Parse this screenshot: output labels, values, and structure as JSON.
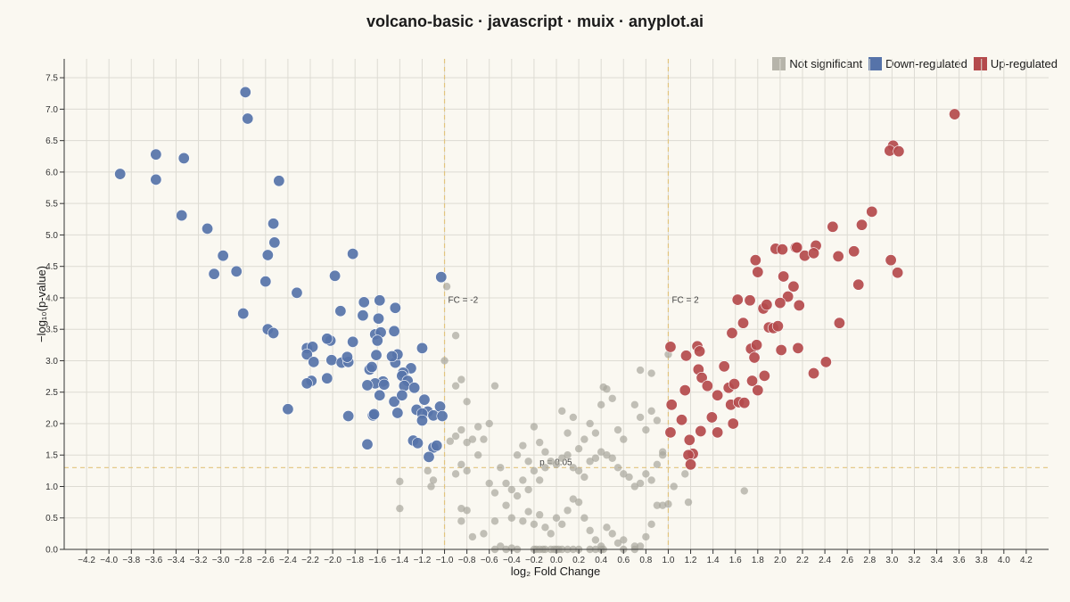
{
  "chart_data": {
    "type": "scatter",
    "title": "volcano-basic · javascript · muix · anyplot.ai",
    "xlabel": "log₂ Fold Change",
    "ylabel": "−log₁₀(p-value)",
    "xlim": [
      -4.4,
      4.4
    ],
    "ylim": [
      0,
      7.8
    ],
    "x_ticks": [
      -4.2,
      -4.0,
      -3.8,
      -3.6,
      -3.4,
      -3.2,
      -3.0,
      -2.8,
      -2.6,
      -2.4,
      -2.2,
      -2.0,
      -1.8,
      -1.6,
      -1.4,
      -1.2,
      -1.0,
      -0.8,
      -0.6,
      -0.4,
      -0.2,
      0.0,
      0.2,
      0.4,
      0.6,
      0.8,
      1.0,
      1.2,
      1.4,
      1.6,
      1.8,
      2.0,
      2.2,
      2.4,
      2.6,
      2.8,
      3.0,
      3.2,
      3.4,
      3.6,
      3.8,
      4.0,
      4.2
    ],
    "y_ticks": [
      0.0,
      0.5,
      1.0,
      1.5,
      2.0,
      2.5,
      3.0,
      3.5,
      4.0,
      4.5,
      5.0,
      5.5,
      6.0,
      6.5,
      7.0,
      7.5
    ],
    "grid": true,
    "legend_position": "top-right",
    "reference_lines": [
      {
        "axis": "x",
        "value": -1.0,
        "label": "FC = -2"
      },
      {
        "axis": "x",
        "value": 1.0,
        "label": "FC = 2"
      },
      {
        "axis": "y",
        "value": 1.3,
        "label": "p = 0.05"
      }
    ],
    "series": [
      {
        "name": "Not significant",
        "color": "#A8A69C",
        "points": [
          [
            -0.98,
            4.18
          ],
          [
            -0.9,
            3.4
          ],
          [
            -1.0,
            3.0
          ],
          [
            -0.9,
            2.6
          ],
          [
            -0.85,
            2.7
          ],
          [
            -0.55,
            2.6
          ],
          [
            -0.8,
            2.35
          ],
          [
            -0.6,
            2.0
          ],
          [
            -0.7,
            1.95
          ],
          [
            -0.75,
            1.75
          ],
          [
            -0.8,
            1.7
          ],
          [
            -0.85,
            1.9
          ],
          [
            -0.9,
            1.8
          ],
          [
            -0.95,
            1.72
          ],
          [
            -0.65,
            1.75
          ],
          [
            -0.7,
            1.5
          ],
          [
            -0.85,
            1.35
          ],
          [
            -0.8,
            1.25
          ],
          [
            -0.9,
            1.2
          ],
          [
            -1.15,
            1.25
          ],
          [
            -1.1,
            1.1
          ],
          [
            -1.12,
            1.0
          ],
          [
            -1.4,
            1.08
          ],
          [
            -1.4,
            0.65
          ],
          [
            -0.85,
            0.65
          ],
          [
            -0.8,
            0.62
          ],
          [
            -0.85,
            0.45
          ],
          [
            -0.75,
            0.2
          ],
          [
            -0.65,
            0.25
          ],
          [
            -0.55,
            0.45
          ],
          [
            -0.45,
            0.7
          ],
          [
            -0.4,
            0.5
          ],
          [
            -0.3,
            0.45
          ],
          [
            -0.25,
            0.6
          ],
          [
            -0.2,
            0.4
          ],
          [
            -0.15,
            0.55
          ],
          [
            -0.1,
            0.35
          ],
          [
            -0.05,
            0.25
          ],
          [
            0.0,
            0.5
          ],
          [
            0.05,
            0.4
          ],
          [
            0.1,
            0.62
          ],
          [
            0.15,
            0.8
          ],
          [
            0.2,
            0.75
          ],
          [
            0.25,
            0.5
          ],
          [
            0.3,
            0.3
          ],
          [
            0.35,
            0.15
          ],
          [
            0.4,
            0.05
          ],
          [
            0.45,
            0.35
          ],
          [
            0.5,
            0.25
          ],
          [
            0.55,
            0.1
          ],
          [
            0.6,
            0.15
          ],
          [
            0.7,
            0.05
          ],
          [
            0.75,
            0.05
          ],
          [
            0.8,
            0.2
          ],
          [
            0.85,
            0.4
          ],
          [
            0.9,
            0.7
          ],
          [
            0.95,
            0.7
          ],
          [
            1.0,
            0.72
          ],
          [
            -0.55,
            0.0
          ],
          [
            -0.5,
            0.05
          ],
          [
            -0.45,
            0.0
          ],
          [
            -0.4,
            0.02
          ],
          [
            -0.35,
            0.0
          ],
          [
            -0.2,
            0.0
          ],
          [
            -0.18,
            0.0
          ],
          [
            -0.15,
            0.0
          ],
          [
            -0.12,
            0.0
          ],
          [
            -0.1,
            0.0
          ],
          [
            -0.05,
            0.0
          ],
          [
            -0.02,
            0.0
          ],
          [
            0.0,
            0.0
          ],
          [
            0.02,
            0.0
          ],
          [
            0.05,
            0.0
          ],
          [
            0.1,
            0.0
          ],
          [
            0.15,
            0.0
          ],
          [
            0.2,
            0.0
          ],
          [
            0.3,
            0.0
          ],
          [
            0.35,
            0.0
          ],
          [
            0.4,
            0.0
          ],
          [
            0.42,
            0.0
          ],
          [
            0.6,
            0.0
          ],
          [
            0.7,
            0.0
          ],
          [
            -0.6,
            1.05
          ],
          [
            -0.55,
            0.9
          ],
          [
            -0.5,
            1.3
          ],
          [
            -0.45,
            1.05
          ],
          [
            -0.4,
            0.95
          ],
          [
            -0.35,
            0.85
          ],
          [
            -0.3,
            1.1
          ],
          [
            -0.25,
            0.95
          ],
          [
            -0.2,
            1.25
          ],
          [
            -0.15,
            1.1
          ],
          [
            -0.1,
            1.3
          ],
          [
            -0.05,
            1.4
          ],
          [
            0.0,
            1.35
          ],
          [
            0.05,
            1.45
          ],
          [
            0.1,
            1.5
          ],
          [
            0.15,
            1.3
          ],
          [
            0.2,
            1.25
          ],
          [
            0.25,
            1.15
          ],
          [
            0.3,
            1.4
          ],
          [
            0.35,
            1.45
          ],
          [
            0.4,
            1.55
          ],
          [
            0.45,
            1.5
          ],
          [
            0.5,
            1.45
          ],
          [
            0.55,
            1.3
          ],
          [
            0.6,
            1.2
          ],
          [
            0.65,
            1.15
          ],
          [
            0.7,
            1.0
          ],
          [
            0.75,
            1.05
          ],
          [
            0.8,
            1.2
          ],
          [
            0.85,
            1.1
          ],
          [
            0.9,
            1.35
          ],
          [
            0.95,
            1.5
          ],
          [
            -0.35,
            1.5
          ],
          [
            -0.3,
            1.65
          ],
          [
            -0.25,
            1.4
          ],
          [
            -0.2,
            1.95
          ],
          [
            -0.15,
            1.7
          ],
          [
            -0.1,
            1.55
          ],
          [
            0.05,
            2.2
          ],
          [
            0.1,
            1.85
          ],
          [
            0.15,
            2.1
          ],
          [
            0.2,
            1.6
          ],
          [
            0.25,
            1.75
          ],
          [
            0.3,
            2.0
          ],
          [
            0.35,
            1.85
          ],
          [
            0.4,
            2.3
          ],
          [
            0.45,
            2.55
          ],
          [
            0.5,
            2.4
          ],
          [
            0.55,
            1.9
          ],
          [
            0.6,
            1.75
          ],
          [
            0.7,
            2.3
          ],
          [
            0.75,
            2.1
          ],
          [
            0.8,
            1.9
          ],
          [
            0.85,
            2.2
          ],
          [
            0.9,
            2.05
          ],
          [
            0.95,
            1.55
          ],
          [
            0.75,
            2.85
          ],
          [
            0.85,
            2.8
          ],
          [
            0.42,
            2.58
          ],
          [
            1.0,
            3.1
          ],
          [
            1.15,
            1.2
          ],
          [
            1.05,
            1.0
          ],
          [
            1.18,
            0.75
          ],
          [
            1.68,
            0.93
          ]
        ]
      },
      {
        "name": "Down-regulated",
        "color": "#5673A9",
        "points": [
          [
            -2.78,
            7.27
          ],
          [
            -2.76,
            6.85
          ],
          [
            -3.58,
            6.28
          ],
          [
            -3.33,
            6.22
          ],
          [
            -3.9,
            5.97
          ],
          [
            -3.58,
            5.88
          ],
          [
            -2.48,
            5.86
          ],
          [
            -3.35,
            5.31
          ],
          [
            -3.12,
            5.1
          ],
          [
            -2.53,
            5.18
          ],
          [
            -2.52,
            4.88
          ],
          [
            -2.98,
            4.67
          ],
          [
            -2.58,
            4.68
          ],
          [
            -1.82,
            4.7
          ],
          [
            -2.86,
            4.42
          ],
          [
            -3.06,
            4.38
          ],
          [
            -2.6,
            4.26
          ],
          [
            -1.98,
            4.35
          ],
          [
            -1.03,
            4.33
          ],
          [
            -2.32,
            4.08
          ],
          [
            -2.8,
            3.75
          ],
          [
            -1.72,
            3.93
          ],
          [
            -1.58,
            3.96
          ],
          [
            -1.44,
            3.84
          ],
          [
            -1.93,
            3.79
          ],
          [
            -1.73,
            3.72
          ],
          [
            -1.59,
            3.67
          ],
          [
            -2.58,
            3.5
          ],
          [
            -2.53,
            3.44
          ],
          [
            -1.62,
            3.42
          ],
          [
            -1.57,
            3.45
          ],
          [
            -1.45,
            3.47
          ],
          [
            -1.6,
            3.32
          ],
          [
            -2.02,
            3.32
          ],
          [
            -2.05,
            3.35
          ],
          [
            -2.23,
            3.2
          ],
          [
            -2.18,
            3.22
          ],
          [
            -2.23,
            3.1
          ],
          [
            -1.82,
            3.3
          ],
          [
            -1.2,
            3.2
          ],
          [
            -2.17,
            2.98
          ],
          [
            -2.01,
            3.01
          ],
          [
            -1.92,
            2.97
          ],
          [
            -1.86,
            2.98
          ],
          [
            -1.87,
            3.06
          ],
          [
            -1.61,
            3.09
          ],
          [
            -1.44,
            2.97
          ],
          [
            -1.42,
            3.1
          ],
          [
            -1.47,
            3.07
          ],
          [
            -1.3,
            2.88
          ],
          [
            -1.67,
            2.86
          ],
          [
            -1.65,
            2.9
          ],
          [
            -1.55,
            2.67
          ],
          [
            -1.37,
            2.81
          ],
          [
            -1.38,
            2.76
          ],
          [
            -1.33,
            2.68
          ],
          [
            -1.36,
            2.6
          ],
          [
            -1.27,
            2.57
          ],
          [
            -2.05,
            2.72
          ],
          [
            -2.19,
            2.68
          ],
          [
            -2.23,
            2.64
          ],
          [
            -1.62,
            2.64
          ],
          [
            -1.54,
            2.62
          ],
          [
            -1.69,
            2.61
          ],
          [
            -1.58,
            2.45
          ],
          [
            -1.45,
            2.35
          ],
          [
            -1.38,
            2.45
          ],
          [
            -1.18,
            2.38
          ],
          [
            -1.25,
            2.22
          ],
          [
            -1.15,
            2.19
          ],
          [
            -1.2,
            2.16
          ],
          [
            -1.1,
            2.13
          ],
          [
            -1.04,
            2.27
          ],
          [
            -1.02,
            2.12
          ],
          [
            -1.2,
            2.05
          ],
          [
            -1.42,
            2.17
          ],
          [
            -1.64,
            2.13
          ],
          [
            -1.63,
            2.15
          ],
          [
            -1.86,
            2.12
          ],
          [
            -2.4,
            2.23
          ],
          [
            -1.1,
            1.62
          ],
          [
            -1.07,
            1.65
          ],
          [
            -1.14,
            1.47
          ],
          [
            -1.28,
            1.73
          ],
          [
            -1.24,
            1.69
          ],
          [
            -1.69,
            1.67
          ]
        ]
      },
      {
        "name": "Up-regulated",
        "color": "#B44A4C",
        "points": [
          [
            3.56,
            6.92
          ],
          [
            3.01,
            6.42
          ],
          [
            2.98,
            6.34
          ],
          [
            3.06,
            6.33
          ],
          [
            2.82,
            5.37
          ],
          [
            2.47,
            5.13
          ],
          [
            2.73,
            5.16
          ],
          [
            2.14,
            4.8
          ],
          [
            2.32,
            4.83
          ],
          [
            1.96,
            4.78
          ],
          [
            2.02,
            4.77
          ],
          [
            2.15,
            4.8
          ],
          [
            2.22,
            4.67
          ],
          [
            2.3,
            4.71
          ],
          [
            2.52,
            4.66
          ],
          [
            2.66,
            4.74
          ],
          [
            1.78,
            4.6
          ],
          [
            2.99,
            4.6
          ],
          [
            1.8,
            4.41
          ],
          [
            2.03,
            4.34
          ],
          [
            3.05,
            4.4
          ],
          [
            2.12,
            4.18
          ],
          [
            2.7,
            4.21
          ],
          [
            1.62,
            3.97
          ],
          [
            1.73,
            3.96
          ],
          [
            2.07,
            4.02
          ],
          [
            1.85,
            3.83
          ],
          [
            1.88,
            3.89
          ],
          [
            2.0,
            3.92
          ],
          [
            2.17,
            3.88
          ],
          [
            1.67,
            3.6
          ],
          [
            1.9,
            3.53
          ],
          [
            1.94,
            3.52
          ],
          [
            1.98,
            3.55
          ],
          [
            2.53,
            3.6
          ],
          [
            1.57,
            3.44
          ],
          [
            1.02,
            3.22
          ],
          [
            1.26,
            3.23
          ],
          [
            1.28,
            3.15
          ],
          [
            1.74,
            3.19
          ],
          [
            1.79,
            3.25
          ],
          [
            2.01,
            3.17
          ],
          [
            2.16,
            3.2
          ],
          [
            1.16,
            3.08
          ],
          [
            1.77,
            3.05
          ],
          [
            1.5,
            2.91
          ],
          [
            1.27,
            2.86
          ],
          [
            1.3,
            2.73
          ],
          [
            2.41,
            2.98
          ],
          [
            1.35,
            2.6
          ],
          [
            1.44,
            2.45
          ],
          [
            1.54,
            2.57
          ],
          [
            1.59,
            2.63
          ],
          [
            1.75,
            2.68
          ],
          [
            1.86,
            2.76
          ],
          [
            2.3,
            2.8
          ],
          [
            1.15,
            2.53
          ],
          [
            1.8,
            2.53
          ],
          [
            1.03,
            2.3
          ],
          [
            1.56,
            2.3
          ],
          [
            1.63,
            2.34
          ],
          [
            1.68,
            2.33
          ],
          [
            1.12,
            2.06
          ],
          [
            1.39,
            2.1
          ],
          [
            1.58,
            2.0
          ],
          [
            1.02,
            1.86
          ],
          [
            1.29,
            1.88
          ],
          [
            1.44,
            1.86
          ],
          [
            1.19,
            1.74
          ],
          [
            1.22,
            1.52
          ],
          [
            1.18,
            1.5
          ],
          [
            1.2,
            1.35
          ]
        ]
      }
    ]
  }
}
